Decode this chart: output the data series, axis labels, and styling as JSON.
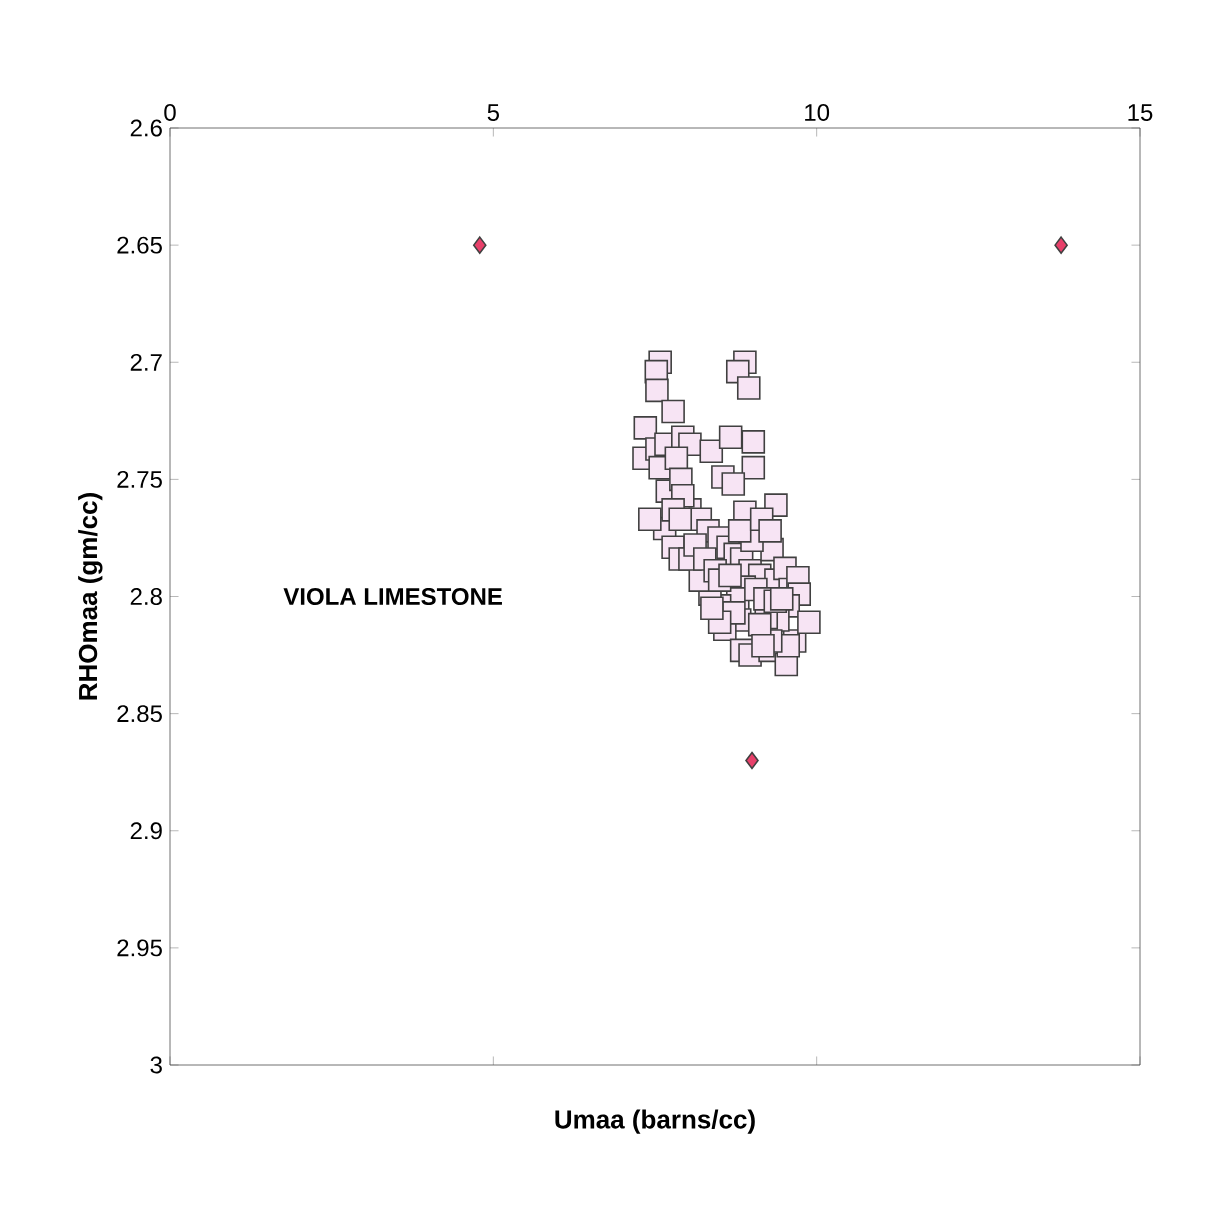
{
  "chart_data": {
    "type": "scatter",
    "xlabel": "Umaa (barns/cc)",
    "ylabel": "RHOmaa (gm/cc)",
    "xlim": [
      0,
      15
    ],
    "xticks": [
      0,
      5,
      10,
      15
    ],
    "ylim": [
      3,
      2.6
    ],
    "yticks": [
      2.6,
      2.65,
      2.7,
      2.75,
      2.8,
      2.85,
      2.9,
      2.95,
      3
    ],
    "annotations": [
      "VIOLA LIMESTONE"
    ],
    "series": [
      {
        "color": "#f7e4f4",
        "marker": "square",
        "x": [
          8.89,
          8.78,
          8.95,
          7.58,
          7.52,
          7.53,
          7.78,
          9.02,
          9.02,
          7.35,
          7.33,
          7.53,
          7.67,
          7.93,
          8.04,
          7.58,
          7.69,
          7.83,
          7.9,
          8.37,
          8.67,
          8.55,
          8.71,
          8.89,
          9.37,
          7.65,
          7.78,
          7.89,
          8.04,
          8.2,
          8.32,
          8.49,
          8.63,
          8.74,
          8.84,
          8.97,
          9.12,
          9.31,
          9.37,
          9.51,
          9.59,
          9.71,
          9.73,
          9.56,
          9.66,
          9.88,
          9.4,
          8.88,
          8.78,
          8.5,
          8.35,
          8.2,
          8.04,
          8.12,
          8.27,
          8.43,
          8.5,
          8.66,
          8.81,
          8.58,
          8.84,
          8.97,
          9.28,
          9.53,
          9.56,
          9.29,
          9.22,
          9.12,
          8.72,
          8.5,
          9.0,
          8.81,
          9.15,
          9.28,
          7.93,
          7.78,
          7.42,
          7.89,
          9.06,
          9.2,
          9.36,
          9.46,
          8.38,
          9.17
        ],
        "values": [
          2.7,
          2.704,
          2.711,
          2.7,
          2.704,
          2.712,
          2.721,
          2.734,
          2.745,
          2.728,
          2.741,
          2.737,
          2.735,
          2.732,
          2.735,
          2.745,
          2.755,
          2.741,
          2.75,
          2.738,
          2.732,
          2.749,
          2.752,
          2.764,
          2.761,
          2.771,
          2.779,
          2.784,
          2.763,
          2.767,
          2.772,
          2.775,
          2.779,
          2.782,
          2.784,
          2.789,
          2.791,
          2.78,
          2.793,
          2.788,
          2.797,
          2.792,
          2.799,
          2.804,
          2.819,
          2.811,
          2.81,
          2.796,
          2.801,
          2.804,
          2.799,
          2.793,
          2.784,
          2.778,
          2.784,
          2.789,
          2.793,
          2.791,
          2.81,
          2.814,
          2.823,
          2.825,
          2.823,
          2.829,
          2.821,
          2.819,
          2.809,
          2.812,
          2.807,
          2.811,
          2.776,
          2.772,
          2.767,
          2.772,
          2.757,
          2.763,
          2.767,
          2.767,
          2.797,
          2.801,
          2.802,
          2.801,
          2.805,
          2.821
        ]
      },
      {
        "color": "#e8406a",
        "marker": "diamond",
        "x": [
          4.79,
          13.78,
          9.0
        ],
        "values": [
          2.65,
          2.65,
          2.87
        ]
      }
    ]
  }
}
